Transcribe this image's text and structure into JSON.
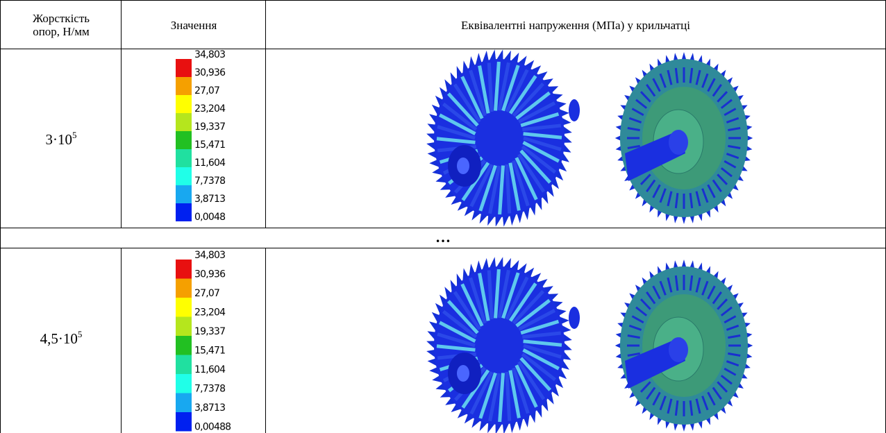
{
  "header": {
    "columns": [
      "Жорсткість опор, Н/мм",
      "Значення",
      "Еквівалентні напруження (МПа) у крильчатці"
    ]
  },
  "rows": [
    {
      "stiffness": {
        "base": "3·10",
        "exp": "5"
      },
      "legend": [
        "34,803",
        "30,936",
        "27,07",
        "23,204",
        "19,337",
        "15,471",
        "11,604",
        "7,7378",
        "3,8713",
        "0,0048"
      ]
    },
    {
      "stiffness": {
        "base": "4,5·10",
        "exp": "5"
      },
      "legend": [
        "34,803",
        "30,936",
        "27,07",
        "23,204",
        "19,337",
        "15,471",
        "11,604",
        "7,7378",
        "3,8713",
        "0,00488"
      ]
    }
  ],
  "separator": "…"
}
